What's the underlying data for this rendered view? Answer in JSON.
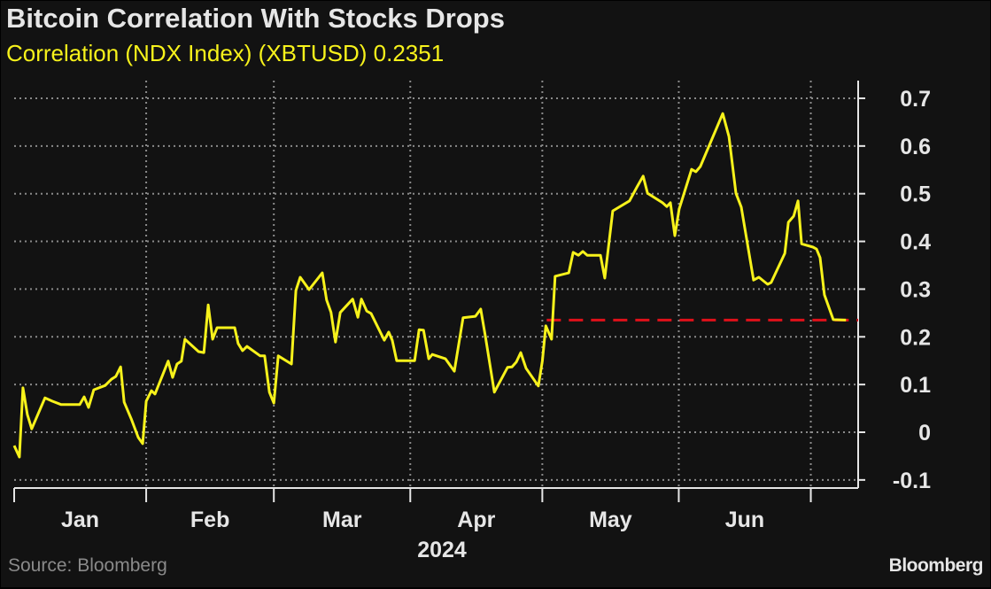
{
  "chart_data": {
    "type": "line",
    "title": "Bitcoin Correlation With Stocks Drops",
    "subtitle": "Correlation (NDX Index) (XBTUSD) 0.2351",
    "xlabel": "2024",
    "ylabel": "",
    "x_unit": "day of year 2024",
    "xlim": [
      0,
      193
    ],
    "ylim": [
      -0.12,
      0.72
    ],
    "y_ticks": [
      -0.1,
      0,
      0.1,
      0.2,
      0.3,
      0.4,
      0.5,
      0.6,
      0.7
    ],
    "y_tick_labels": [
      "-0.1",
      "0",
      "0.1",
      "0.2",
      "0.3",
      "0.4",
      "0.5",
      "0.6",
      "0.7"
    ],
    "month_boundaries": [
      0,
      31,
      60,
      91,
      121,
      152,
      182
    ],
    "month_labels": [
      "Jan",
      "Feb",
      "Mar",
      "Apr",
      "May",
      "Jun"
    ],
    "grid": true,
    "series": [
      {
        "name": "Correlation (NDX Index) (XBTUSD)",
        "color": "#f7f21b",
        "x": [
          1.0,
          2.2,
          3.0,
          4.0,
          5.0,
          8.0,
          9.7,
          11.7,
          15.9,
          16.9,
          17.9,
          19.1,
          21.7,
          23.1,
          24.1,
          25.2,
          26.0,
          27.6,
          29.2,
          30.2,
          31.0,
          32.2,
          33.0,
          36.0,
          37.0,
          38.0,
          39.0,
          39.8,
          42.9,
          44.1,
          45.1,
          46.1,
          47.1,
          51.1,
          51.9,
          52.9,
          53.9,
          56.9,
          57.9,
          59.0,
          60.0,
          61.0,
          64.0,
          65.0,
          66.0,
          68.0,
          71.0,
          72.0,
          73.0,
          74.0,
          75.1,
          77.9,
          79.1,
          79.9,
          81.1,
          82.1,
          85.1,
          86.1,
          86.9,
          87.9,
          92.0,
          93.0,
          94.0,
          95.2,
          96.0,
          99.0,
          101.0,
          103.0,
          105.8,
          107.0,
          108.0,
          110.1,
          113.1,
          114.1,
          115.1,
          116.1,
          117.3,
          120.1,
          121.0,
          121.8,
          123.1,
          123.9,
          127.0,
          128.0,
          129.2,
          130.2,
          131.2,
          134.2,
          135.2,
          137.0,
          140.8,
          142.5,
          143.9,
          144.9,
          148.3,
          149.3,
          150.1,
          151.1,
          152.1,
          154.9,
          155.9,
          156.9,
          162.0,
          163.4,
          165.0,
          166.2,
          169.0,
          170.2,
          172.2,
          173.0,
          176.1,
          176.9,
          178.1,
          179.1,
          179.9,
          182.5,
          183.3,
          184.1,
          185.1,
          187.1,
          190.0
        ],
        "y": [
          -0.028,
          -0.052,
          0.093,
          0.037,
          0.007,
          0.072,
          0.065,
          0.058,
          0.058,
          0.074,
          0.052,
          0.089,
          0.098,
          0.111,
          0.117,
          0.137,
          0.063,
          0.028,
          -0.011,
          -0.024,
          0.065,
          0.087,
          0.08,
          0.149,
          0.115,
          0.143,
          0.149,
          0.195,
          0.169,
          0.167,
          0.267,
          0.195,
          0.219,
          0.219,
          0.186,
          0.171,
          0.18,
          0.16,
          0.16,
          0.084,
          0.061,
          0.16,
          0.143,
          0.297,
          0.325,
          0.299,
          0.334,
          0.277,
          0.251,
          0.189,
          0.251,
          0.279,
          0.241,
          0.279,
          0.254,
          0.249,
          0.193,
          0.21,
          0.193,
          0.15,
          0.15,
          0.215,
          0.214,
          0.154,
          0.163,
          0.154,
          0.128,
          0.24,
          0.243,
          0.258,
          0.204,
          0.084,
          0.136,
          0.137,
          0.147,
          0.167,
          0.134,
          0.097,
          0.149,
          0.223,
          0.195,
          0.327,
          0.334,
          0.377,
          0.371,
          0.379,
          0.371,
          0.371,
          0.323,
          0.464,
          0.485,
          0.514,
          0.537,
          0.501,
          0.481,
          0.473,
          0.481,
          0.412,
          0.468,
          0.551,
          0.546,
          0.557,
          0.668,
          0.62,
          0.501,
          0.472,
          0.319,
          0.325,
          0.31,
          0.314,
          0.375,
          0.44,
          0.453,
          0.485,
          0.395,
          0.388,
          0.384,
          0.366,
          0.288,
          0.236,
          0.2351
        ]
      }
    ],
    "reference_line": {
      "value": 0.2351,
      "from_x": 122,
      "color": "#e0101a",
      "style": "dashed"
    }
  },
  "footer": {
    "source": "Source: Bloomberg",
    "brand": "Bloomberg"
  }
}
